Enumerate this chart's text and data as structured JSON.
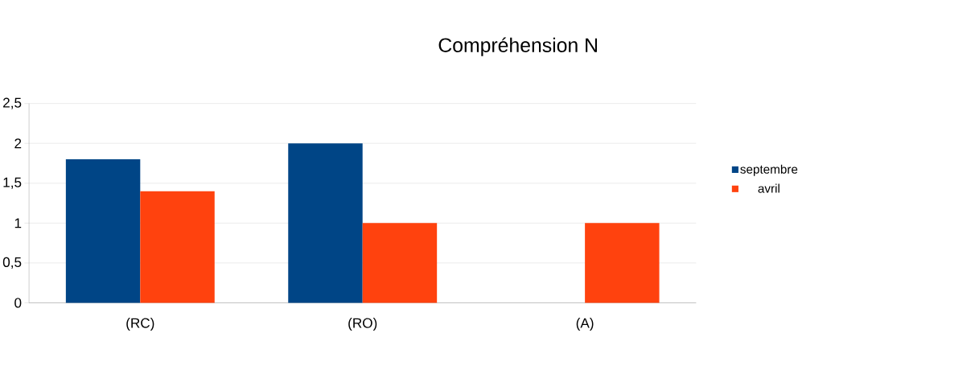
{
  "chart_data": {
    "type": "bar",
    "title": "Compréhension N",
    "categories": [
      "(RC)",
      "(RO)",
      "(A)"
    ],
    "series": [
      {
        "name": "septembre",
        "color": "#004586",
        "values": [
          1.8,
          2,
          0
        ]
      },
      {
        "name": "avril",
        "color": "#ff420e",
        "values": [
          1.4,
          1,
          1
        ]
      }
    ],
    "ylim": [
      0,
      2.5
    ],
    "yticks": [
      0,
      {
        "value": 0.5,
        "label": "0,5"
      },
      1,
      {
        "value": 1.5,
        "label": "1,5"
      },
      2,
      {
        "value": 2.5,
        "label": "2,5"
      }
    ],
    "grid": "y",
    "legend": "right"
  }
}
